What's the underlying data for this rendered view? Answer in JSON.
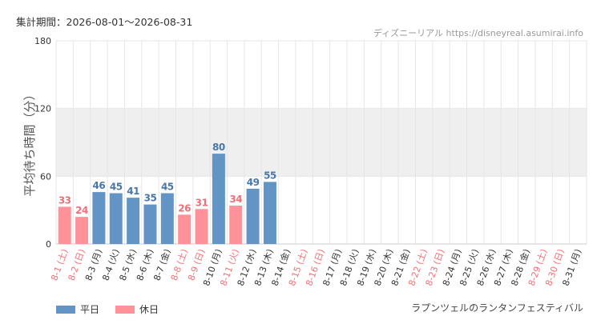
{
  "header": {
    "period_text": "集計期間：2026-08-01〜2026-08-31",
    "credit_text": "ディズニーリアル https://disneyreal.asumirai.info"
  },
  "footer": {
    "attraction_name": "ラプンツェルのランタンフェスティバル"
  },
  "legend": {
    "weekday_label": "平日",
    "holiday_label": "休日"
  },
  "colors": {
    "weekday": "#6394c6",
    "holiday": "#ff9299",
    "weekday_text": "#4a77a8",
    "holiday_text": "#ee7077",
    "band": "#efefef",
    "grid": "#e6e6e6"
  },
  "chart_data": {
    "type": "bar",
    "ylabel": "平均待ち時間（分）",
    "ylim": [
      0,
      180
    ],
    "yticks": [
      0,
      60,
      120,
      180
    ],
    "categories": [
      "8-1 (土)",
      "8-2 (日)",
      "8-3 (月)",
      "8-4 (火)",
      "8-5 (水)",
      "8-6 (木)",
      "8-7 (金)",
      "8-8 (土)",
      "8-9 (日)",
      "8-10 (月)",
      "8-11 (火)",
      "8-12 (水)",
      "8-13 (木)",
      "8-14 (金)",
      "8-15 (土)",
      "8-16 (日)",
      "8-17 (月)",
      "8-18 (火)",
      "8-19 (水)",
      "8-20 (木)",
      "8-21 (金)",
      "8-22 (土)",
      "8-23 (日)",
      "8-24 (月)",
      "8-25 (火)",
      "8-26 (水)",
      "8-27 (木)",
      "8-28 (金)",
      "8-29 (土)",
      "8-30 (日)",
      "8-31 (月)"
    ],
    "values": [
      33,
      24,
      46,
      45,
      41,
      35,
      45,
      26,
      31,
      80,
      34,
      49,
      55,
      null,
      null,
      null,
      null,
      null,
      null,
      null,
      null,
      null,
      null,
      null,
      null,
      null,
      null,
      null,
      null,
      null,
      null
    ],
    "day_types": [
      "holiday",
      "holiday",
      "weekday",
      "weekday",
      "weekday",
      "weekday",
      "weekday",
      "holiday",
      "holiday",
      "weekday",
      "holiday",
      "weekday",
      "weekday",
      "weekday",
      "holiday",
      "holiday",
      "weekday",
      "weekday",
      "weekday",
      "weekday",
      "weekday",
      "holiday",
      "holiday",
      "weekday",
      "weekday",
      "weekday",
      "weekday",
      "weekday",
      "holiday",
      "holiday",
      "weekday"
    ],
    "shaded_band": [
      60,
      120
    ],
    "grid": true,
    "legend_position": "bottom-left"
  }
}
